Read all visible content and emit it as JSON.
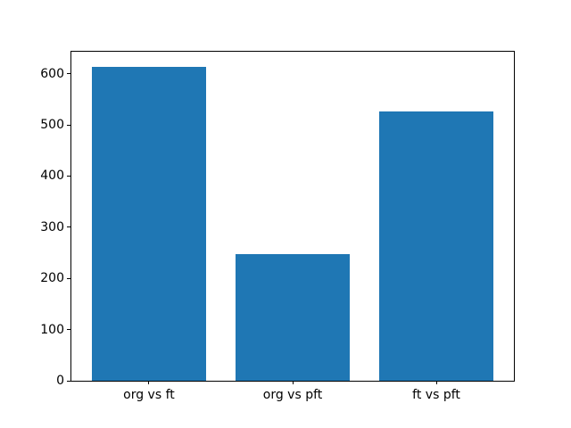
{
  "chart_data": {
    "type": "bar",
    "title": "",
    "xlabel": "",
    "ylabel": "",
    "categories": [
      "org vs ft",
      "org vs pft",
      "ft vs pft"
    ],
    "values": [
      614,
      248,
      527
    ],
    "yticks": [
      0,
      100,
      200,
      300,
      400,
      500,
      600
    ],
    "ylim": [
      0,
      643
    ],
    "xlim": [
      -0.54,
      2.54
    ],
    "bar_width": 0.8,
    "bar_color": "#1f77b4",
    "axis_color": "#000000",
    "background_color": "#ffffff",
    "grid": false,
    "legend": "none"
  }
}
